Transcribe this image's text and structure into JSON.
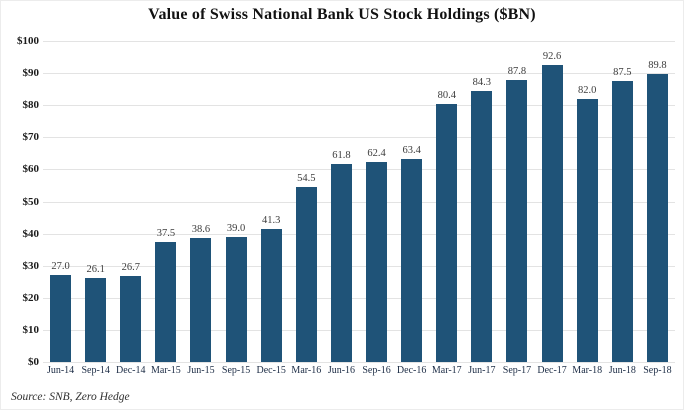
{
  "chart_data": {
    "type": "bar",
    "title": "Value of Swiss National Bank US Stock Holdings ($BN)",
    "categories": [
      "Jun-14",
      "Sep-14",
      "Dec-14",
      "Mar-15",
      "Jun-15",
      "Sep-15",
      "Dec-15",
      "Mar-16",
      "Jun-16",
      "Sep-16",
      "Dec-16",
      "Mar-17",
      "Jun-17",
      "Sep-17",
      "Dec-17",
      "Mar-18",
      "Jun-18",
      "Sep-18"
    ],
    "values": [
      27.0,
      26.1,
      26.7,
      37.5,
      38.6,
      39.0,
      41.3,
      54.5,
      61.8,
      62.4,
      63.4,
      80.4,
      84.3,
      87.8,
      92.6,
      82.0,
      87.5,
      89.8
    ],
    "value_labels": [
      "27.0",
      "26.1",
      "26.7",
      "37.5",
      "38.6",
      "39.0",
      "41.3",
      "54.5",
      "61.8",
      "62.4",
      "63.4",
      "80.4",
      "84.3",
      "87.8",
      "92.6",
      "82.0",
      "87.5",
      "89.8"
    ],
    "xlabel": "",
    "ylabel": "",
    "ylim": [
      0,
      100
    ],
    "ytick_step": 10,
    "ytick_prefix": "$",
    "ytick_labels": [
      "$0",
      "$10",
      "$20",
      "$30",
      "$40",
      "$50",
      "$60",
      "$70",
      "$80",
      "$90",
      "$100"
    ],
    "grid": "horizontal",
    "legend": "none",
    "bar_color": "#1F5378",
    "source": "Source: SNB, Zero Hedge"
  }
}
